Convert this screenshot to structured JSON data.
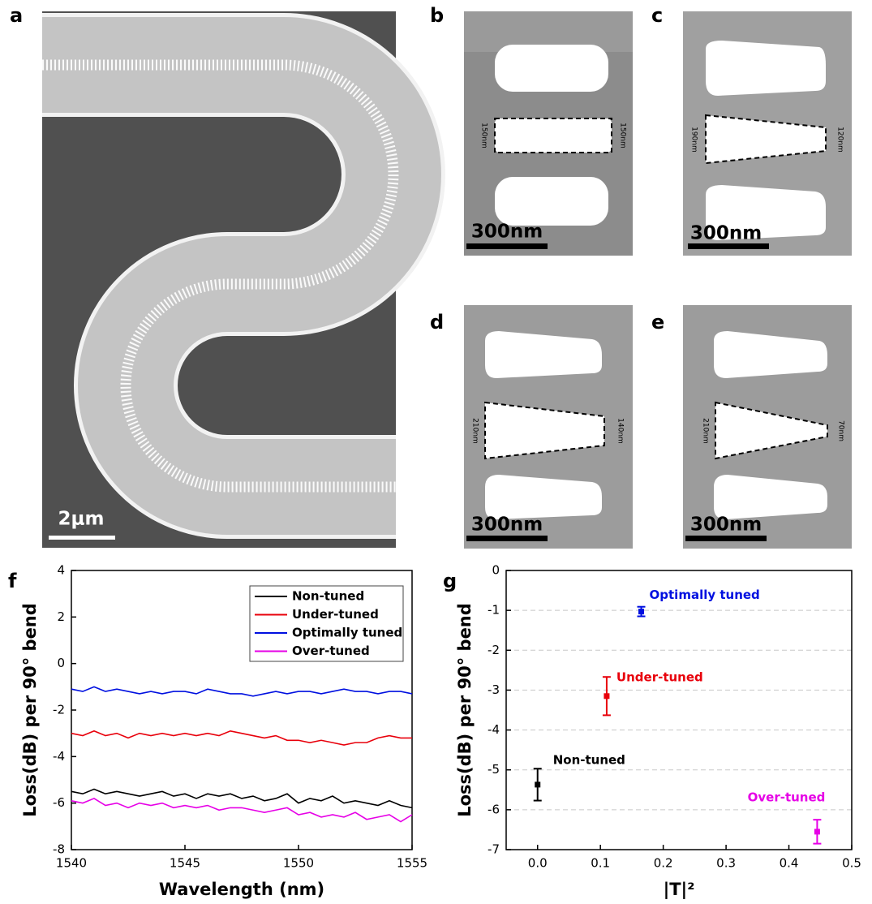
{
  "figure": {
    "panels": [
      {
        "label": "a",
        "scale": "2μm"
      },
      {
        "label": "b",
        "scale": "300nm",
        "left": "150nm",
        "right": "150nm"
      },
      {
        "label": "c",
        "scale": "300nm",
        "left": "190nm",
        "right": "120nm"
      },
      {
        "label": "d",
        "scale": "300nm",
        "left": "210nm",
        "right": "140nm"
      },
      {
        "label": "e",
        "scale": "300nm",
        "left": "210nm",
        "right": "70nm"
      }
    ]
  },
  "chart_data": [
    {
      "type": "line",
      "label": "f",
      "x_label": "Wavelength (nm)",
      "y_label": "Loss(dB) per 90° bend",
      "xlim": [
        1540,
        1555
      ],
      "xticks": [
        1540,
        1545,
        1550,
        1555
      ],
      "ylim": [
        -8,
        4
      ],
      "yticks": [
        -8,
        -6,
        -4,
        -2,
        0,
        2,
        4
      ],
      "legend": "upper right",
      "x": [
        1540,
        1540.5,
        1541,
        1541.5,
        1542,
        1542.5,
        1543,
        1543.5,
        1544,
        1544.5,
        1545,
        1545.5,
        1546,
        1546.5,
        1547,
        1547.5,
        1548,
        1548.5,
        1549,
        1549.5,
        1550,
        1550.5,
        1551,
        1551.5,
        1552,
        1552.5,
        1553,
        1553.5,
        1554,
        1554.5,
        1555
      ],
      "series": [
        {
          "name": "Non-tuned",
          "color": "#000000",
          "values": [
            -5.5,
            -5.6,
            -5.4,
            -5.6,
            -5.5,
            -5.6,
            -5.7,
            -5.6,
            -5.5,
            -5.7,
            -5.6,
            -5.8,
            -5.6,
            -5.7,
            -5.6,
            -5.8,
            -5.7,
            -5.9,
            -5.8,
            -5.6,
            -6.0,
            -5.8,
            -5.9,
            -5.7,
            -6.0,
            -5.9,
            -6.0,
            -6.1,
            -5.9,
            -6.1,
            -6.2
          ]
        },
        {
          "name": "Under-tuned",
          "color": "#e8000b",
          "values": [
            -3.0,
            -3.1,
            -2.9,
            -3.1,
            -3.0,
            -3.2,
            -3.0,
            -3.1,
            -3.0,
            -3.1,
            -3.0,
            -3.1,
            -3.0,
            -3.1,
            -2.9,
            -3.0,
            -3.1,
            -3.2,
            -3.1,
            -3.3,
            -3.3,
            -3.4,
            -3.3,
            -3.4,
            -3.5,
            -3.4,
            -3.4,
            -3.2,
            -3.1,
            -3.2,
            -3.2
          ]
        },
        {
          "name": "Optimally tuned",
          "color": "#0010e0",
          "values": [
            -1.1,
            -1.2,
            -1.0,
            -1.2,
            -1.1,
            -1.2,
            -1.3,
            -1.2,
            -1.3,
            -1.2,
            -1.2,
            -1.3,
            -1.1,
            -1.2,
            -1.3,
            -1.3,
            -1.4,
            -1.3,
            -1.2,
            -1.3,
            -1.2,
            -1.2,
            -1.3,
            -1.2,
            -1.1,
            -1.2,
            -1.2,
            -1.3,
            -1.2,
            -1.2,
            -1.3
          ]
        },
        {
          "name": "Over-tuned",
          "color": "#e600e6",
          "values": [
            -5.9,
            -6.0,
            -5.8,
            -6.1,
            -6.0,
            -6.2,
            -6.0,
            -6.1,
            -6.0,
            -6.2,
            -6.1,
            -6.2,
            -6.1,
            -6.3,
            -6.2,
            -6.2,
            -6.3,
            -6.4,
            -6.3,
            -6.2,
            -6.5,
            -6.4,
            -6.6,
            -6.5,
            -6.6,
            -6.4,
            -6.7,
            -6.6,
            -6.5,
            -6.8,
            -6.5
          ]
        }
      ]
    },
    {
      "type": "scatter",
      "label": "g",
      "x_label": "|T|²",
      "y_label": "Loss(dB) per 90° bend",
      "xlim": [
        -0.05,
        0.5
      ],
      "xticks": [
        {
          "value": 0,
          "label": "0.0"
        },
        0.1,
        0.2,
        0.3,
        0.4,
        0.5
      ],
      "ylim": [
        -7,
        0
      ],
      "yticks": [
        -7,
        -6,
        -5,
        -4,
        -3,
        -2,
        -1,
        0
      ],
      "grid": "dashed",
      "series": [
        {
          "name": "Non-tuned",
          "color": "#000000",
          "x": [
            0
          ],
          "values": [
            -5.37
          ],
          "errors": [
            0.4
          ]
        },
        {
          "name": "Under-tuned",
          "color": "#e8000b",
          "x": [
            0.11
          ],
          "values": [
            -3.15
          ],
          "errors": [
            0.48
          ]
        },
        {
          "name": "Optimally tuned",
          "color": "#0010e0",
          "x": [
            0.165
          ],
          "values": [
            -1.03
          ],
          "errors": [
            0.12
          ]
        },
        {
          "name": "Over-tuned",
          "color": "#e600e6",
          "x": [
            0.445
          ],
          "values": [
            -6.55
          ],
          "errors": [
            0.3
          ]
        }
      ]
    }
  ]
}
